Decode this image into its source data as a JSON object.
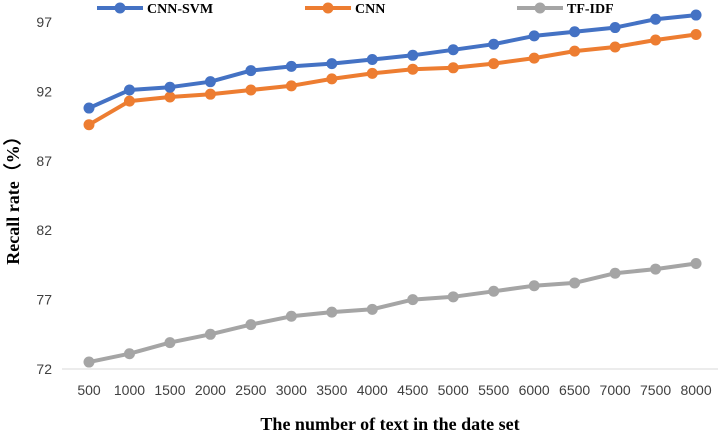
{
  "chart_data": {
    "type": "line",
    "x": [
      500,
      1000,
      1500,
      2000,
      2500,
      3000,
      3500,
      4000,
      4500,
      5000,
      5500,
      6000,
      6500,
      7000,
      7500,
      8000
    ],
    "series": [
      {
        "name": "CNN-SVM",
        "color": "#4472C4",
        "values": [
          90.8,
          92.1,
          92.3,
          92.7,
          93.5,
          93.8,
          94.0,
          94.3,
          94.6,
          95.0,
          95.4,
          96.0,
          96.3,
          96.6,
          97.2,
          97.5
        ]
      },
      {
        "name": "CNN",
        "color": "#ED7D31",
        "values": [
          89.6,
          91.3,
          91.6,
          91.8,
          92.1,
          92.4,
          92.9,
          93.3,
          93.6,
          93.7,
          94.0,
          94.4,
          94.9,
          95.2,
          95.7,
          96.1
        ]
      },
      {
        "name": "TF-IDF",
        "color": "#A5A5A5",
        "values": [
          72.5,
          73.1,
          73.9,
          74.5,
          75.2,
          75.8,
          76.1,
          76.3,
          77.0,
          77.2,
          77.6,
          78.0,
          78.2,
          78.9,
          79.2,
          79.6
        ]
      }
    ],
    "ylim": [
      72,
      97
    ],
    "yticks": [
      "72",
      "77",
      "82",
      "87",
      "92",
      "97"
    ],
    "xticks": [
      "500",
      "1000",
      "1500",
      "2000",
      "2500",
      "3000",
      "3500",
      "4000",
      "4500",
      "5000",
      "5500",
      "6000",
      "6500",
      "7000",
      "7500",
      "8000"
    ],
    "ylabel": "Recall rate（%）",
    "xlabel": "The number of text in the date set",
    "legend": "top",
    "grid": false
  }
}
